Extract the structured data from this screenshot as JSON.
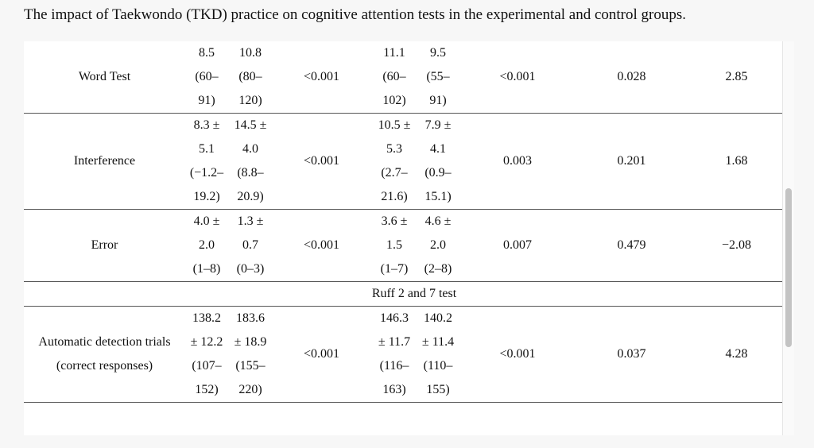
{
  "caption": "The impact of Taekwondo (TKD) practice on cognitive attention tests in the experimental and control groups.",
  "section_ruff": "Ruff 2 and 7 test",
  "rows": {
    "word": {
      "label": "Word Test",
      "e_pre": [
        "8.5",
        "(60–",
        "91)"
      ],
      "e_post": [
        "10.8",
        "(80–",
        "120)"
      ],
      "p_exp": "<0.001",
      "c_pre": [
        "11.1",
        "(60–",
        "102)"
      ],
      "c_post": [
        "9.5",
        "(55–",
        "91)"
      ],
      "p_ctrl": "<0.001",
      "p_between": "0.028",
      "effect": "2.85"
    },
    "interference": {
      "label": "Interference",
      "e_pre": [
        "8.3 ±",
        "5.1",
        "(−1.2–",
        "19.2)"
      ],
      "e_post": [
        "14.5 ±",
        "4.0",
        "(8.8–",
        "20.9)"
      ],
      "p_exp": "<0.001",
      "c_pre": [
        "10.5 ±",
        "5.3",
        "(2.7–",
        "21.6)"
      ],
      "c_post": [
        "7.9 ±",
        "4.1",
        "(0.9–",
        "15.1)"
      ],
      "p_ctrl": "0.003",
      "p_between": "0.201",
      "effect": "1.68"
    },
    "error": {
      "label": "Error",
      "e_pre": [
        "4.0 ±",
        "2.0",
        "(1–8)"
      ],
      "e_post": [
        "1.3 ±",
        "0.7",
        "(0–3)"
      ],
      "p_exp": "<0.001",
      "c_pre": [
        "3.6 ±",
        "1.5",
        "(1–7)"
      ],
      "c_post": [
        "4.6 ±",
        "2.0",
        "(2–8)"
      ],
      "p_ctrl": "0.007",
      "p_between": "0.479",
      "effect": "−2.08"
    },
    "automatic": {
      "label1": "Automatic detection trials",
      "label2": "(correct responses)",
      "e_pre": [
        "138.2",
        "± 12.2",
        "(107–",
        "152)"
      ],
      "e_post": [
        "183.6",
        "± 18.9",
        "(155–",
        "220)"
      ],
      "p_exp": "<0.001",
      "c_pre": [
        "146.3",
        "± 11.7",
        "(116–",
        "163)"
      ],
      "c_post": [
        "140.2",
        "± 11.4",
        "(110–",
        "155)"
      ],
      "p_ctrl": "<0.001",
      "p_between": "0.037",
      "effect": "4.28"
    }
  }
}
